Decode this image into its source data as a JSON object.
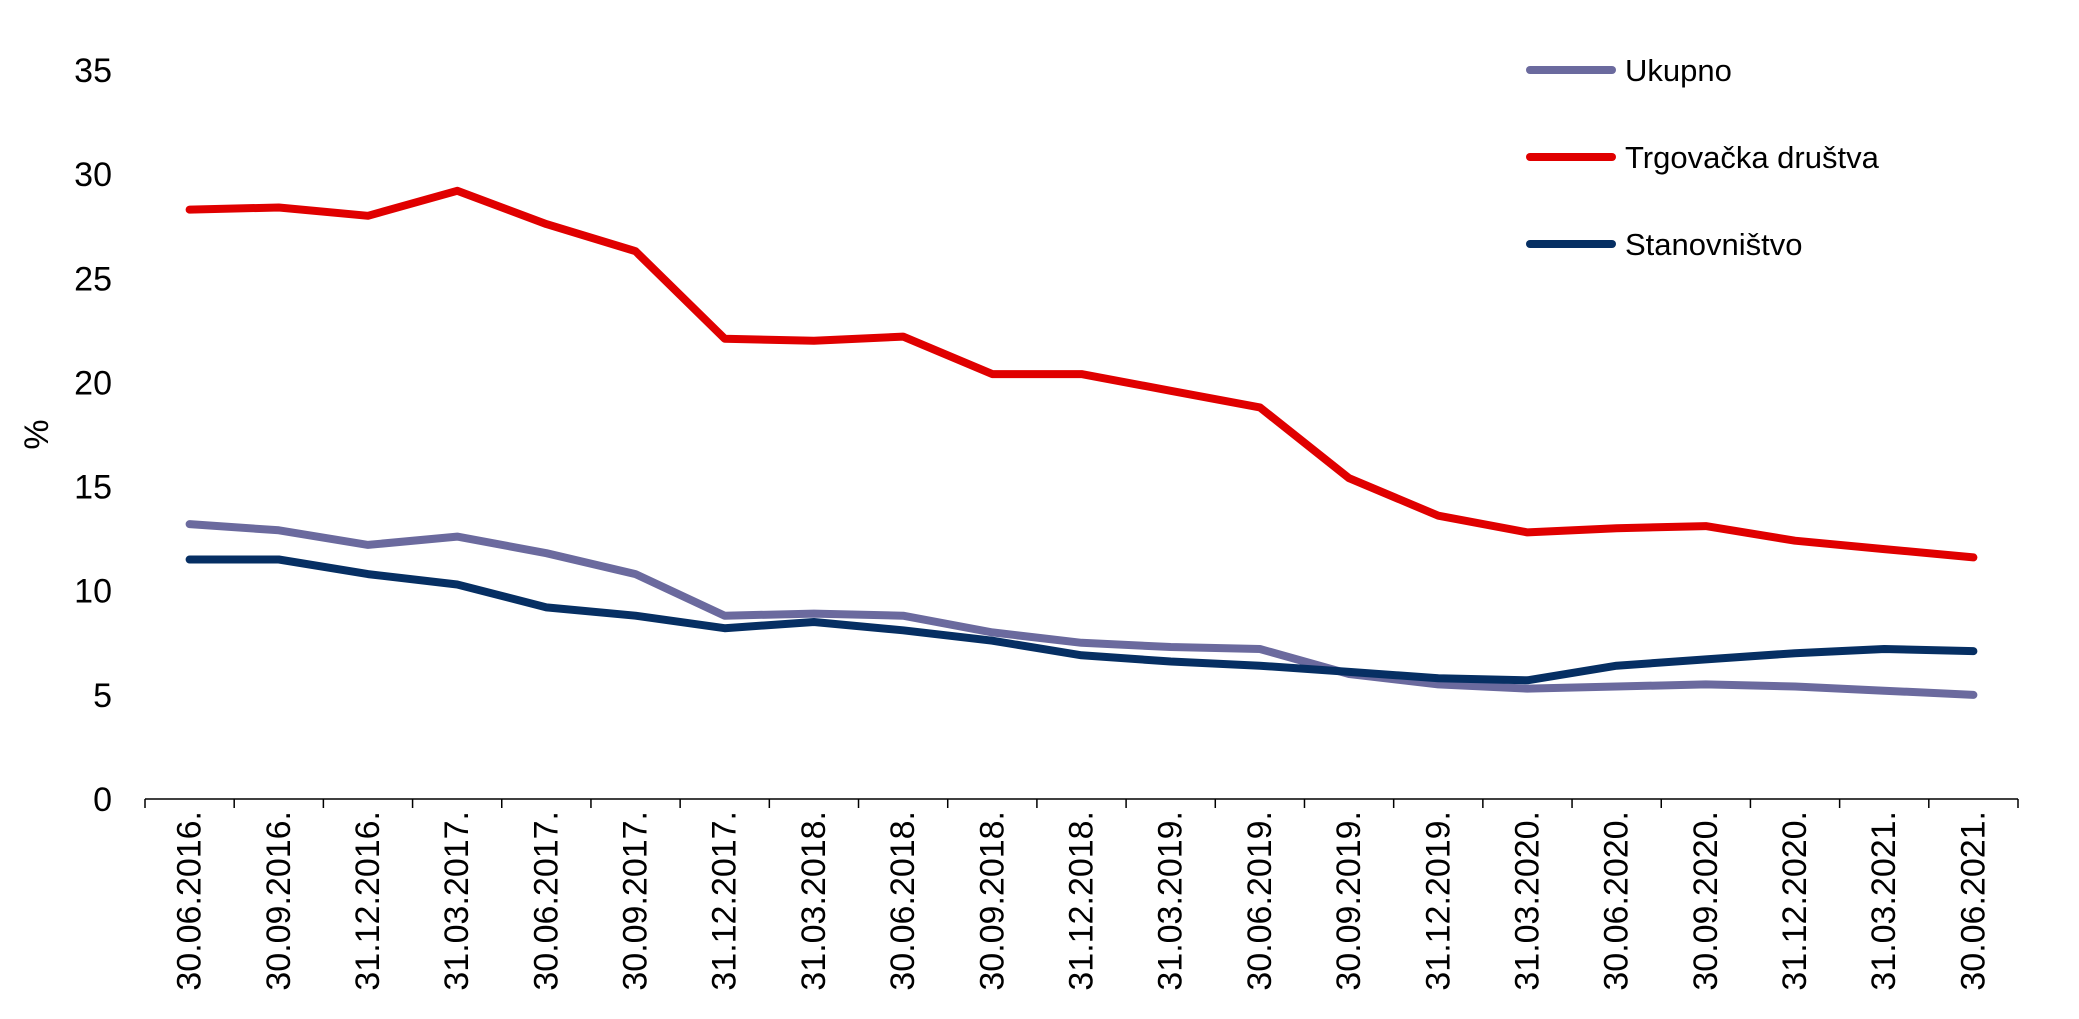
{
  "chart_data": {
    "type": "line",
    "categories": [
      "30.06.2016.",
      "30.09.2016.",
      "31.12.2016.",
      "31.03.2017.",
      "30.06.2017.",
      "30.09.2017.",
      "31.12.2017.",
      "31.03.2018.",
      "30.06.2018.",
      "30.09.2018.",
      "31.12.2018.",
      "31.03.2019.",
      "30.06.2019.",
      "30.09.2019.",
      "31.12.2019.",
      "31.03.2020.",
      "30.06.2020.",
      "30.09.2020.",
      "31.12.2020.",
      "31.03.2021.",
      "30.06.2021."
    ],
    "series": [
      {
        "name": "Ukupno",
        "color": "#6B6A9E",
        "values": [
          13.2,
          12.9,
          12.2,
          12.6,
          11.8,
          10.8,
          8.8,
          8.9,
          8.8,
          8.0,
          7.5,
          7.3,
          7.2,
          6.0,
          5.5,
          5.3,
          5.4,
          5.5,
          5.4,
          5.2,
          5.0
        ]
      },
      {
        "name": "Trgovačka društva",
        "color": "#E00000",
        "values": [
          28.3,
          28.4,
          28.0,
          29.2,
          27.6,
          26.3,
          22.1,
          22.0,
          22.2,
          20.4,
          20.4,
          19.6,
          18.8,
          15.4,
          13.6,
          12.8,
          13.0,
          13.1,
          12.4,
          12.0,
          11.6
        ]
      },
      {
        "name": "Stanovništvo",
        "color": "#062F63",
        "values": [
          11.5,
          11.5,
          10.8,
          10.3,
          9.2,
          8.8,
          8.2,
          8.5,
          8.1,
          7.6,
          6.9,
          6.6,
          6.4,
          6.1,
          5.8,
          5.7,
          6.4,
          6.7,
          7.0,
          7.2,
          7.1
        ]
      }
    ],
    "ylabel": "%",
    "ylim": [
      0,
      35
    ],
    "yticks": [
      0,
      5,
      10,
      15,
      20,
      25,
      30,
      35
    ],
    "grid": false,
    "legend": "top-right"
  }
}
